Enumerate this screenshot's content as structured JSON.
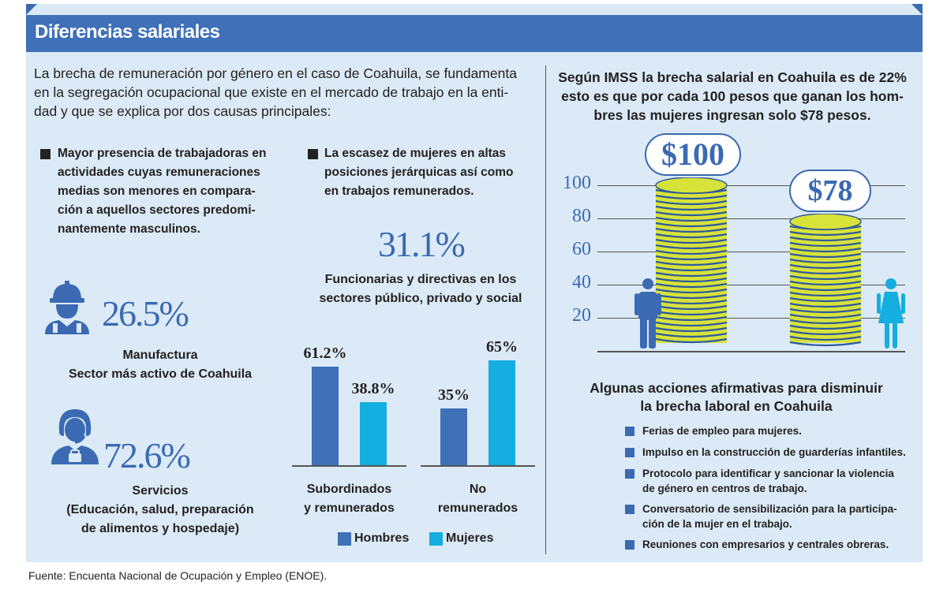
{
  "header": {
    "title": "Diferencias salariales"
  },
  "intro": {
    "lines": [
      "La brecha de remuneración por género en el caso de Coahuila, se fundamenta",
      "en la segregación ocupacional que existe en el mercado de trabajo en la enti-",
      "dad y que se explica por dos causas principales:"
    ]
  },
  "cause1": {
    "lines": [
      "Mayor presencia de trabajadoras en",
      "actividades cuyas remuneraciones",
      "medias son menores en compara-",
      "ción a aquellos sectores predomi-",
      "nantemente masculinos."
    ]
  },
  "cause2": {
    "lines": [
      "La escasez de mujeres en altas",
      "posiciones jerárquicas así como",
      "en trabajos remunerados."
    ]
  },
  "manufactura": {
    "pct": "26.5%",
    "lines": [
      "Manufactura",
      "Sector más activo de Coahuila"
    ],
    "icon": "worker-helmet-icon"
  },
  "servicios": {
    "pct": "72.6%",
    "lines": [
      "Servicios",
      "(Educación, salud, preparación",
      "de alimentos y hospedaje)"
    ],
    "icon": "service-worker-headset-icon"
  },
  "funcionarias": {
    "pct": "31.1%",
    "lines": [
      "Funcionarias y directivas en los",
      "sectores público, privado y social"
    ]
  },
  "chart_data": [
    {
      "type": "bar",
      "categories": [
        "Subordinados y remunerados",
        "No remunerados"
      ],
      "category_lines": [
        [
          "Subordinados",
          "y remunerados"
        ],
        [
          "No",
          "remunerados"
        ]
      ],
      "series": [
        {
          "name": "Hombres",
          "values": [
            61.2,
            35
          ],
          "labels": [
            "61.2%",
            "35%"
          ],
          "color": "#3f70b8"
        },
        {
          "name": "Mujeres",
          "values": [
            38.8,
            65
          ],
          "labels": [
            "38.8%",
            "65%"
          ],
          "color": "#14aee0"
        }
      ],
      "ylim": [
        0,
        100
      ],
      "legend": "bottom"
    },
    {
      "type": "bar",
      "categories": [
        "Hombres",
        "Mujeres"
      ],
      "values": [
        100,
        78
      ],
      "value_labels": [
        "$100",
        "$78"
      ],
      "ylim": [
        0,
        100
      ],
      "yticks": [
        20,
        40,
        60,
        80,
        100
      ],
      "ytick_labels": [
        "20",
        "40",
        "60",
        "80",
        "100"
      ],
      "grid": true
    }
  ],
  "imss": {
    "lines": [
      "Según IMSS la brecha salarial en Coahuila es de 22%",
      "esto es que por cada 100 pesos que ganan los hom-",
      "bres las mujeres ingresan solo $78 pesos."
    ],
    "man_icon": "man-icon",
    "woman_icon": "woman-icon"
  },
  "actions": {
    "title_lines": [
      "Algunas acciones afirmativas para disminuir",
      "la brecha laboral en Coahuila"
    ],
    "items": [
      [
        "Ferias de empleo para mujeres."
      ],
      [
        "Impulso en la construcción de guarderías infantiles."
      ],
      [
        "Protocolo para identificar y sancionar la violencia",
        "de género en centros de trabajo."
      ],
      [
        "Conversatorio de sensibilización para la participa-",
        "ción de la mujer en el trabajo."
      ],
      [
        "Reuniones con empresarios y centrales obreras."
      ]
    ]
  },
  "source": "Fuente: Encuenta Nacional de Ocupación y Empleo (ENOE).",
  "colors": {
    "accent": "#3f70b8",
    "cyan": "#14aee0",
    "panel": "#dbeaf6",
    "coin": "#d8e33a"
  }
}
